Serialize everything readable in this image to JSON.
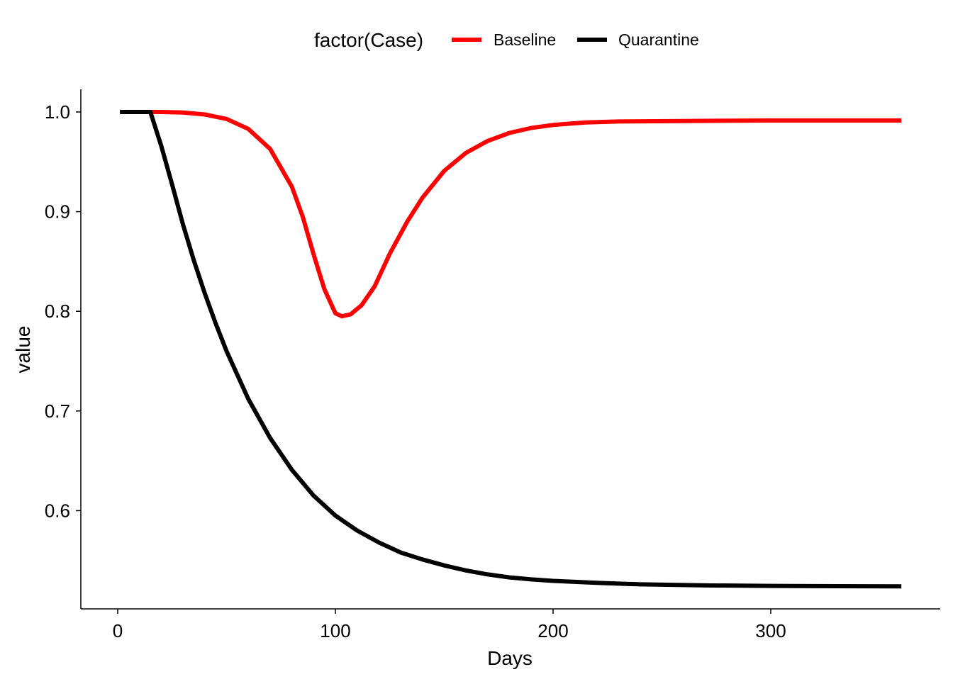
{
  "chart_data": {
    "type": "line",
    "title": "",
    "xlabel": "Days",
    "ylabel": "value",
    "xlim": [
      -16,
      376
    ],
    "ylim": [
      0.5,
      1.025
    ],
    "x_ticks": [
      0,
      100,
      200,
      300
    ],
    "y_ticks": [
      0.6,
      0.7,
      0.8,
      0.9,
      1.0
    ],
    "x_tick_labels": [
      "0",
      "100",
      "200",
      "300"
    ],
    "y_tick_labels": [
      "0.6",
      "0.7",
      "0.8",
      "0.9",
      "1.0"
    ],
    "grid": false,
    "legend": {
      "title": "factor(Case)",
      "placement": "top",
      "entries": [
        "Baseline",
        "Quarantine"
      ]
    },
    "colors": {
      "Baseline": "#ff0000",
      "Quarantine": "#000000"
    },
    "series": [
      {
        "name": "Baseline",
        "points": [
          [
            15,
            1.0
          ],
          [
            20,
            1.0
          ],
          [
            30,
            0.9995
          ],
          [
            40,
            0.9975
          ],
          [
            50,
            0.993
          ],
          [
            60,
            0.983
          ],
          [
            70,
            0.963
          ],
          [
            80,
            0.925
          ],
          [
            85,
            0.895
          ],
          [
            90,
            0.857
          ],
          [
            95,
            0.822
          ],
          [
            100,
            0.798
          ],
          [
            103,
            0.795
          ],
          [
            107,
            0.797
          ],
          [
            112,
            0.806
          ],
          [
            118,
            0.825
          ],
          [
            125,
            0.858
          ],
          [
            133,
            0.89
          ],
          [
            140,
            0.914
          ],
          [
            150,
            0.941
          ],
          [
            160,
            0.959
          ],
          [
            170,
            0.971
          ],
          [
            180,
            0.979
          ],
          [
            190,
            0.984
          ],
          [
            200,
            0.987
          ],
          [
            215,
            0.9895
          ],
          [
            230,
            0.9905
          ],
          [
            260,
            0.991
          ],
          [
            300,
            0.9915
          ],
          [
            360,
            0.9915
          ]
        ]
      },
      {
        "name": "Quarantine",
        "points": [
          [
            1,
            1.0
          ],
          [
            15,
            1.0
          ],
          [
            20,
            0.966
          ],
          [
            25,
            0.927
          ],
          [
            30,
            0.887
          ],
          [
            35,
            0.851
          ],
          [
            40,
            0.818
          ],
          [
            45,
            0.788
          ],
          [
            50,
            0.76
          ],
          [
            60,
            0.712
          ],
          [
            70,
            0.673
          ],
          [
            80,
            0.641
          ],
          [
            90,
            0.615
          ],
          [
            100,
            0.595
          ],
          [
            110,
            0.58
          ],
          [
            120,
            0.568
          ],
          [
            130,
            0.558
          ],
          [
            140,
            0.551
          ],
          [
            150,
            0.545
          ],
          [
            160,
            0.54
          ],
          [
            170,
            0.536
          ],
          [
            180,
            0.533
          ],
          [
            190,
            0.531
          ],
          [
            200,
            0.5295
          ],
          [
            220,
            0.5275
          ],
          [
            240,
            0.526
          ],
          [
            270,
            0.525
          ],
          [
            300,
            0.5245
          ],
          [
            330,
            0.5242
          ],
          [
            360,
            0.524
          ]
        ]
      }
    ]
  }
}
